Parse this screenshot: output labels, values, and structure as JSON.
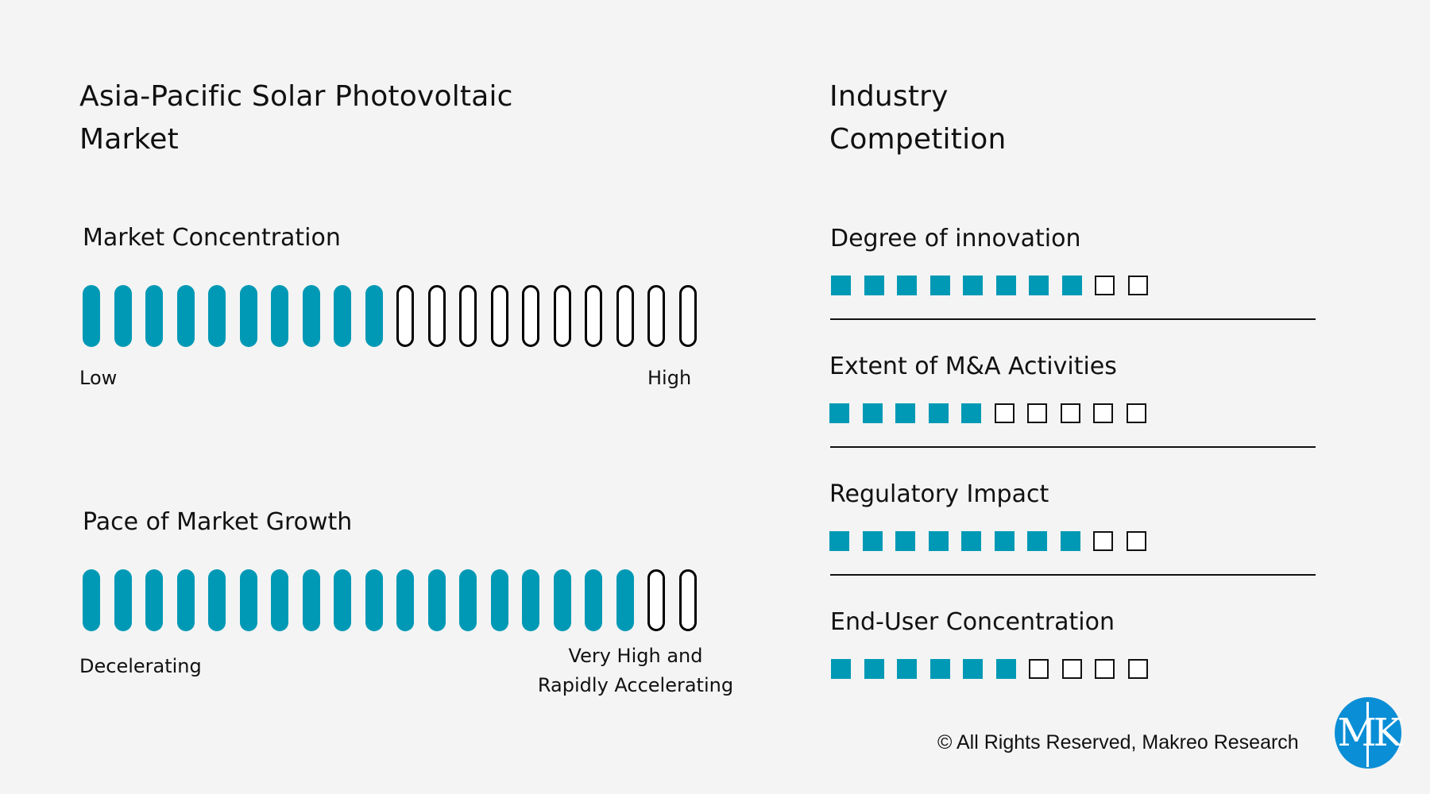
{
  "header": {
    "left_title_line1": "Asia-Pacific Solar Photovoltaic",
    "left_title_line2": "Market",
    "right_title_line1": "Industry",
    "right_title_line2": "Competition"
  },
  "market_concentration": {
    "label": "Market Concentration",
    "filled": 10,
    "total": 20,
    "low_label": "Low",
    "high_label": "High"
  },
  "market_growth": {
    "label": "Pace of Market Growth",
    "filled": 18,
    "total": 20,
    "low_label": "Decelerating",
    "high_label_line1": "Very High and",
    "high_label_line2": "Rapidly Accelerating"
  },
  "competition": [
    {
      "label": "Degree of innovation",
      "filled": 8,
      "total": 10
    },
    {
      "label": "Extent of M&A Activities",
      "filled": 5,
      "total": 10
    },
    {
      "label": "Regulatory Impact",
      "filled": 8,
      "total": 10
    },
    {
      "label": "End-User Concentration",
      "filled": 6,
      "total": 10
    }
  ],
  "footer": {
    "copyright": "© All Rights Reserved, Makreo Research",
    "logo_text": "MK"
  },
  "colors": {
    "accent": "#0099b5",
    "background": "#f4f4f4",
    "logo": "#0a8ed6"
  },
  "chart_data": [
    {
      "type": "bar",
      "title": "Market Concentration",
      "scale_min_label": "Low",
      "scale_max_label": "High",
      "values": [
        10
      ],
      "max": 20
    },
    {
      "type": "bar",
      "title": "Pace of Market Growth",
      "scale_min_label": "Decelerating",
      "scale_max_label": "Very High and Rapidly Accelerating",
      "values": [
        18
      ],
      "max": 20
    },
    {
      "type": "bar",
      "title": "Industry Competition",
      "categories": [
        "Degree of innovation",
        "Extent of M&A Activities",
        "Regulatory Impact",
        "End-User Concentration"
      ],
      "values": [
        8,
        5,
        8,
        6
      ],
      "max": 10
    }
  ]
}
